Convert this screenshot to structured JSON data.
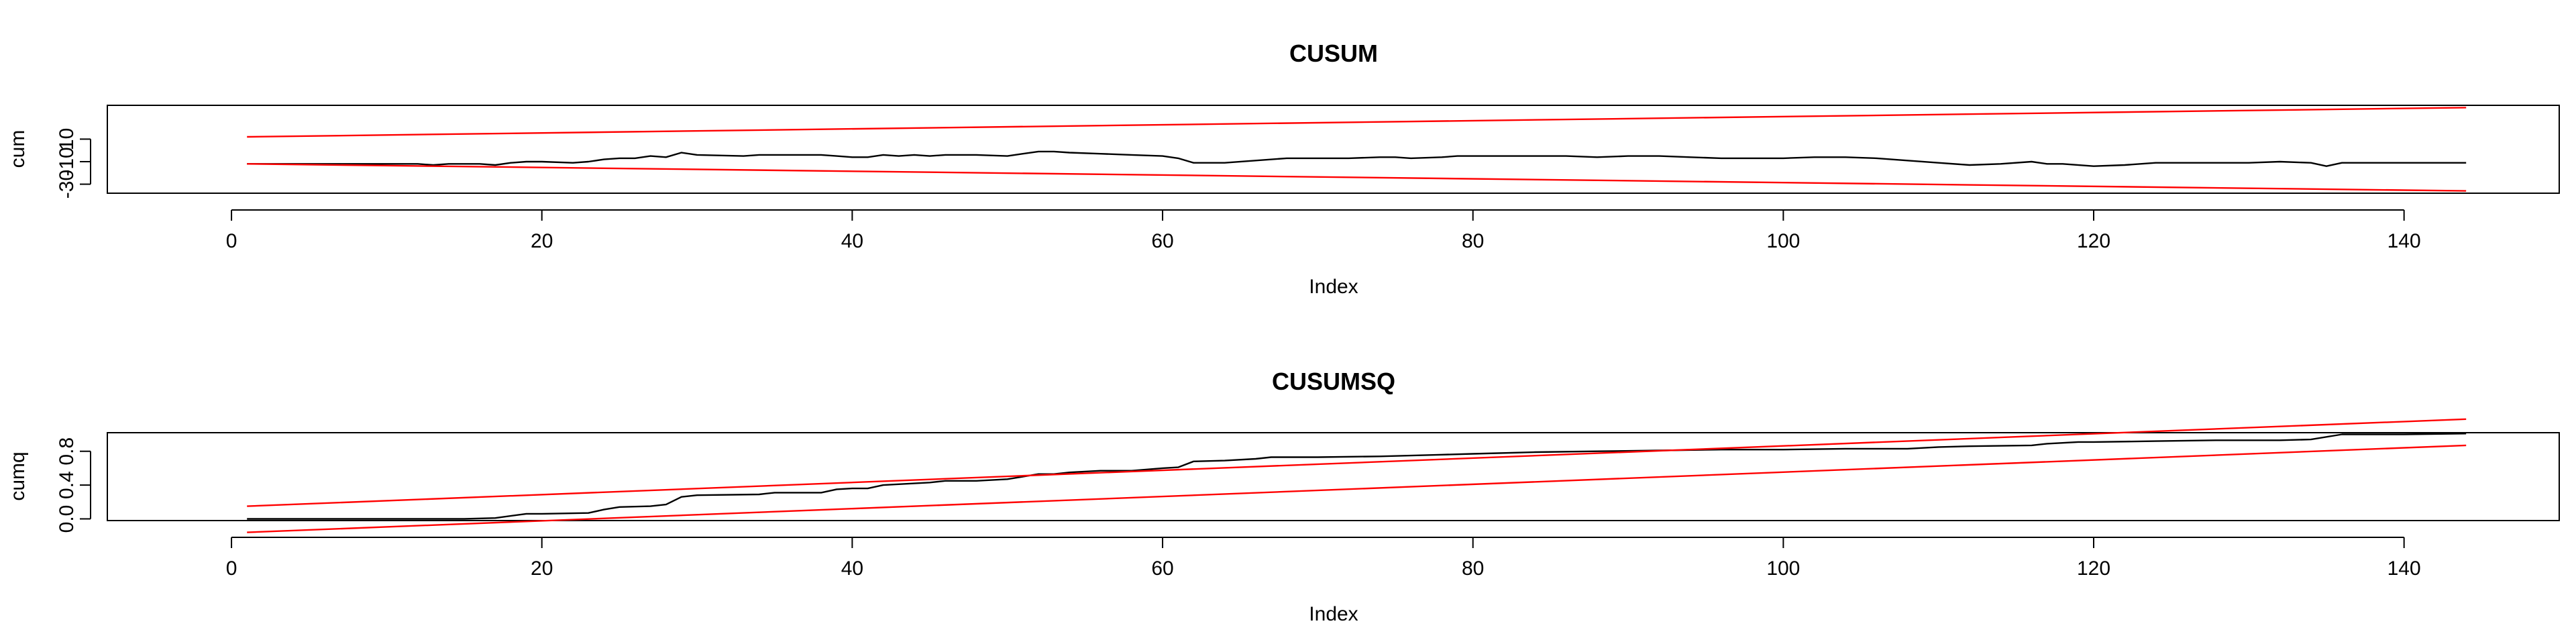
{
  "colors": {
    "background": "#ffffff",
    "series": "#000000",
    "bounds": "#ff0000"
  },
  "chart_data": [
    {
      "type": "line",
      "title": "CUSUM",
      "xlabel": "Index",
      "ylabel": "cum",
      "xticks": [
        0,
        20,
        40,
        60,
        80,
        100,
        120,
        140
      ],
      "yticks": [
        -30,
        -10,
        10
      ],
      "xlim": [
        -8,
        150
      ],
      "ylim": [
        -38,
        40
      ],
      "grid": false,
      "legend": "none",
      "series": [
        {
          "color": "#000000",
          "x": [
            1,
            5,
            10,
            12,
            13,
            14,
            16,
            17,
            18,
            19,
            20,
            22,
            23,
            24,
            25,
            26,
            27,
            28,
            29,
            30,
            33,
            34,
            36,
            38,
            39,
            40,
            41,
            42,
            43,
            44,
            45,
            46,
            48,
            50,
            51,
            52,
            53,
            54,
            56,
            58,
            60,
            61,
            62,
            64,
            66,
            68,
            70,
            72,
            74,
            75,
            76,
            78,
            79,
            80,
            82,
            84,
            86,
            88,
            90,
            92,
            94,
            96,
            98,
            100,
            102,
            104,
            106,
            108,
            110,
            112,
            114,
            116,
            117,
            118,
            120,
            122,
            124,
            126,
            128,
            130,
            132,
            134,
            135,
            136,
            138,
            140,
            142,
            144
          ],
          "y": [
            -12,
            -12,
            -12,
            -12,
            -13,
            -12,
            -12,
            -13,
            -11,
            -10,
            -10,
            -11,
            -10,
            -8,
            -7,
            -7,
            -5,
            -6,
            -2,
            -4,
            -5,
            -4,
            -4,
            -4,
            -5,
            -6,
            -6,
            -4,
            -5,
            -4,
            -5,
            -4,
            -4,
            -5,
            -3,
            -1,
            -1,
            -2,
            -3,
            -4,
            -5,
            -7,
            -11,
            -11,
            -9,
            -7,
            -7,
            -7,
            -6,
            -6,
            -7,
            -6,
            -5,
            -5,
            -5,
            -5,
            -5,
            -6,
            -5,
            -5,
            -6,
            -7,
            -7,
            -7,
            -6,
            -6,
            -7,
            -9,
            -11,
            -13,
            -12,
            -10,
            -12,
            -12,
            -14,
            -13,
            -11,
            -11,
            -11,
            -11,
            -10,
            -11,
            -14,
            -11,
            -11,
            -11,
            -11,
            -11
          ]
        },
        {
          "color": "#ff0000",
          "x": [
            1,
            144
          ],
          "y": [
            12,
            38
          ]
        },
        {
          "color": "#ff0000",
          "x": [
            1,
            144
          ],
          "y": [
            -12,
            -36
          ]
        }
      ]
    },
    {
      "type": "line",
      "title": "CUSUMSQ",
      "xlabel": "Index",
      "ylabel": "cumq",
      "xticks": [
        0,
        20,
        40,
        60,
        80,
        100,
        120,
        140
      ],
      "yticks": [
        0.0,
        0.4,
        0.8
      ],
      "xlim": [
        -8,
        150
      ],
      "ylim": [
        -0.02,
        1.02
      ],
      "grid": false,
      "legend": "none",
      "series": [
        {
          "color": "#000000",
          "x": [
            1,
            13,
            15,
            17,
            19,
            20,
            23,
            24,
            25,
            27,
            28,
            29,
            30,
            34,
            35,
            38,
            39,
            40,
            41,
            42,
            43,
            45,
            46,
            48,
            50,
            52,
            53,
            54,
            56,
            58,
            60,
            61,
            62,
            64,
            66,
            67,
            70,
            74,
            78,
            80,
            84,
            88,
            92,
            96,
            100,
            104,
            108,
            110,
            112,
            116,
            117,
            119,
            120,
            124,
            128,
            132,
            134,
            136,
            138,
            140,
            144
          ],
          "y": [
            0.0,
            0.0,
            0.0,
            0.01,
            0.06,
            0.06,
            0.07,
            0.11,
            0.14,
            0.15,
            0.17,
            0.26,
            0.28,
            0.29,
            0.31,
            0.31,
            0.35,
            0.36,
            0.36,
            0.4,
            0.41,
            0.43,
            0.45,
            0.45,
            0.47,
            0.53,
            0.53,
            0.55,
            0.57,
            0.57,
            0.6,
            0.61,
            0.68,
            0.69,
            0.71,
            0.73,
            0.73,
            0.74,
            0.76,
            0.77,
            0.79,
            0.8,
            0.81,
            0.82,
            0.82,
            0.83,
            0.83,
            0.85,
            0.86,
            0.87,
            0.89,
            0.91,
            0.91,
            0.92,
            0.93,
            0.93,
            0.94,
            1.0,
            1.0,
            1.0,
            1.01
          ]
        },
        {
          "color": "#ff0000",
          "x": [
            1,
            144
          ],
          "y": [
            0.15,
            1.18
          ]
        },
        {
          "color": "#ff0000",
          "x": [
            1,
            144
          ],
          "y": [
            -0.16,
            0.87
          ]
        }
      ]
    }
  ]
}
